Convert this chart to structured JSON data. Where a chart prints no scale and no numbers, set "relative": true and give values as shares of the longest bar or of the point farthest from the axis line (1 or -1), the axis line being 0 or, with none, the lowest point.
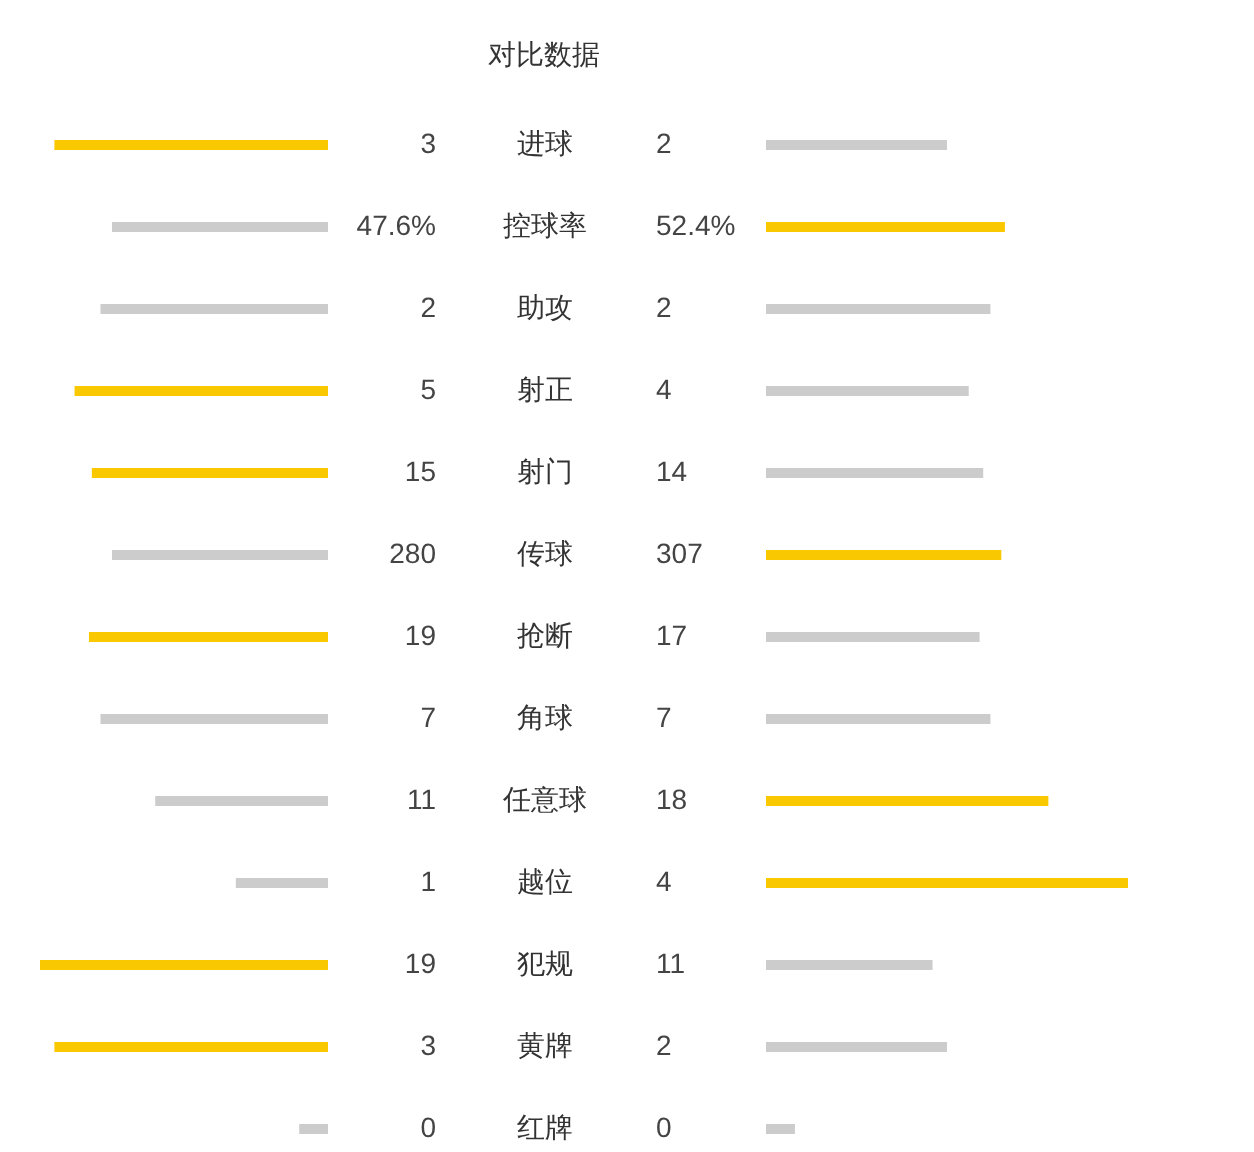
{
  "chart_data": [
    {
      "type": "bar",
      "orientation": "horizontal",
      "relative": true,
      "title": "对比数据",
      "categories": [
        "进球",
        "控球率",
        "助攻",
        "射正",
        "射门",
        "传球",
        "抢断",
        "角球",
        "任意球",
        "越位",
        "犯规",
        "黄牌",
        "红牌"
      ],
      "values": [
        0.95,
        0.75,
        0.79,
        0.88,
        0.82,
        0.75,
        0.83,
        0.79,
        0.6,
        0.32,
        1,
        0.95,
        0.1
      ],
      "colors": [
        "#fac800",
        "#cccccc",
        "#cccccc",
        "#fac800",
        "#fac800",
        "#cccccc",
        "#fac800",
        "#cccccc",
        "#cccccc",
        "#cccccc",
        "#fac800",
        "#fac800",
        "#cccccc"
      ],
      "annotations": [
        "3",
        "47.6%",
        "2",
        "5",
        "15",
        "280",
        "19",
        "7",
        "11",
        "1",
        "19",
        "3",
        "0"
      ]
    },
    {
      "type": "bar",
      "orientation": "horizontal",
      "relative": true,
      "categories": [
        null,
        null,
        null,
        null,
        null,
        null,
        null,
        null,
        null,
        null,
        null,
        null,
        null
      ],
      "values": [
        0.5,
        0.66,
        0.62,
        0.56,
        0.6,
        0.65,
        0.59,
        0.62,
        0.78,
        1,
        0.46,
        0.5,
        0.08
      ],
      "colors": [
        "#cccccc",
        "#fac800",
        "#cccccc",
        "#cccccc",
        "#cccccc",
        "#fac800",
        "#cccccc",
        "#cccccc",
        "#fac800",
        "#fac800",
        "#cccccc",
        "#cccccc",
        "#cccccc"
      ],
      "annotations": [
        "2",
        "52.4%",
        "2",
        "4",
        "14",
        "307",
        "17",
        "7",
        "18",
        "4",
        "11",
        "2",
        "0"
      ]
    }
  ]
}
